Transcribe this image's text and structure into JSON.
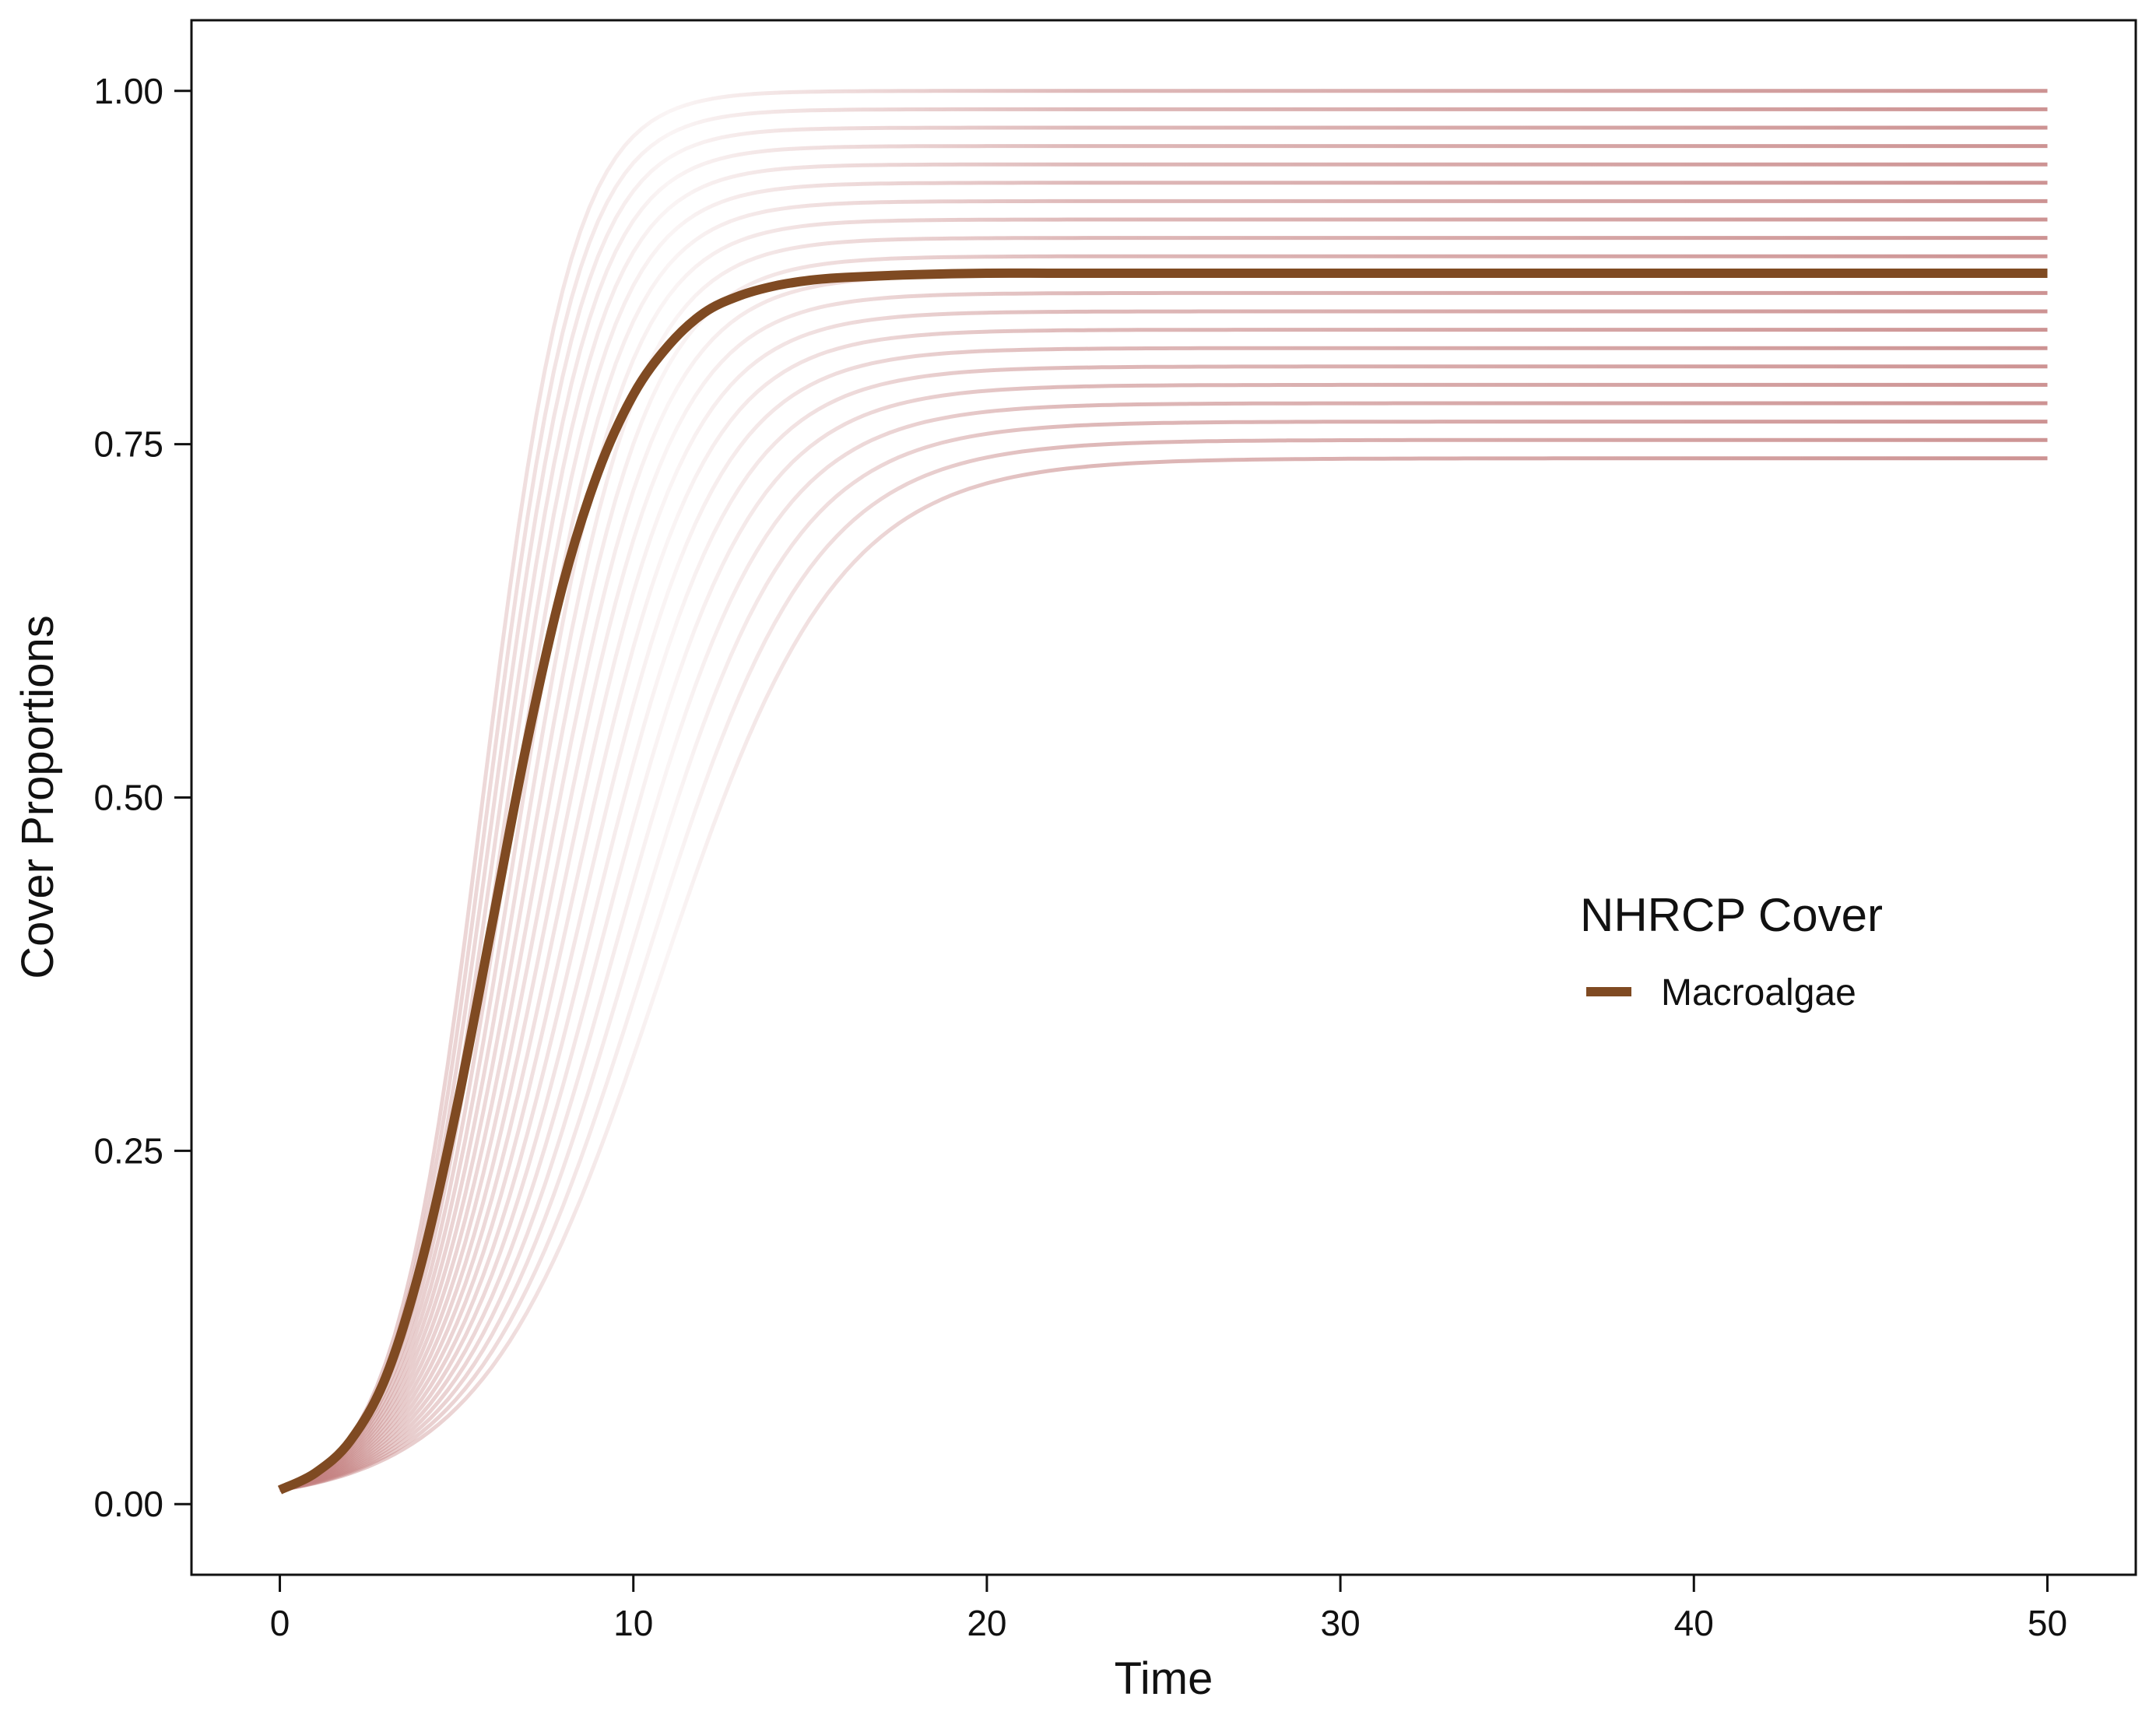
{
  "chart_data": {
    "type": "line",
    "title": "",
    "xlabel": "Time",
    "ylabel": "Cover Proportions",
    "xlim": [
      -2.5,
      52.5
    ],
    "ylim": [
      -0.05,
      1.05
    ],
    "x_ticks": [
      0,
      10,
      20,
      30,
      40,
      50
    ],
    "x_tick_labels": [
      "0",
      "10",
      "20",
      "30",
      "40",
      "50"
    ],
    "y_ticks": [
      0,
      0.25,
      0.5,
      0.75,
      1.0
    ],
    "y_tick_labels": [
      "0.00",
      "0.25",
      "0.50",
      "0.75",
      "1.00"
    ],
    "grid": false,
    "legend": {
      "title": "NHRCP Cover",
      "placement": "center-right",
      "entries": [
        {
          "label": "Macroalgae",
          "color": "#7f4a22"
        }
      ]
    },
    "main_series": {
      "name": "Macroalgae",
      "color": "#7f4a22",
      "x": [
        0,
        1,
        2,
        3,
        4,
        5,
        6,
        7,
        8,
        9,
        10,
        11,
        12,
        13,
        14,
        15,
        16,
        18,
        20,
        22,
        25,
        30,
        35,
        40,
        45,
        50
      ],
      "y": [
        0.01,
        0.022,
        0.045,
        0.09,
        0.17,
        0.28,
        0.41,
        0.54,
        0.65,
        0.73,
        0.785,
        0.82,
        0.843,
        0.855,
        0.862,
        0.866,
        0.868,
        0.87,
        0.871,
        0.871,
        0.871,
        0.871,
        0.871,
        0.871,
        0.871,
        0.871
      ]
    },
    "ensemble": {
      "color": "#c48080",
      "x_start": 0,
      "x_end": 50,
      "y_start": 0.01,
      "plateau_values": [
        0.74,
        0.753,
        0.766,
        0.779,
        0.792,
        0.805,
        0.818,
        0.831,
        0.844,
        0.857,
        0.87,
        0.883,
        0.896,
        0.909,
        0.922,
        0.935,
        0.948,
        0.961,
        0.974,
        0.987,
        1.0
      ]
    }
  }
}
